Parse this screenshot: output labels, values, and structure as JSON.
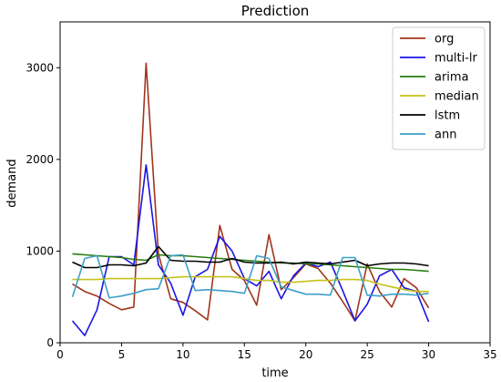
{
  "chart_data": {
    "type": "line",
    "title": "Prediction",
    "xlabel": "time",
    "ylabel": "demand",
    "xlim": [
      0,
      35
    ],
    "ylim": [
      0,
      3500
    ],
    "xticks": [
      0,
      5,
      10,
      15,
      20,
      25,
      30,
      35
    ],
    "yticks": [
      0,
      1000,
      2000,
      3000
    ],
    "grid": false,
    "legend_position": "top-right",
    "x": [
      1,
      2,
      3,
      4,
      5,
      6,
      7,
      8,
      9,
      10,
      11,
      12,
      13,
      14,
      15,
      16,
      17,
      18,
      19,
      20,
      21,
      22,
      23,
      24,
      25,
      26,
      27,
      28,
      29,
      30
    ],
    "series": [
      {
        "name": "org",
        "color": "#a0351c",
        "values": [
          640,
          560,
          510,
          430,
          360,
          390,
          3050,
          970,
          480,
          440,
          350,
          250,
          1280,
          800,
          680,
          410,
          1180,
          580,
          710,
          860,
          810,
          650,
          450,
          240,
          860,
          560,
          390,
          700,
          600,
          380
        ]
      },
      {
        "name": "multi-lr",
        "color": "#1a14e6",
        "values": [
          240,
          80,
          360,
          940,
          940,
          850,
          1940,
          850,
          650,
          300,
          720,
          800,
          1160,
          1000,
          700,
          620,
          780,
          480,
          730,
          870,
          830,
          880,
          570,
          240,
          420,
          730,
          800,
          600,
          560,
          230
        ]
      },
      {
        "name": "arima",
        "color": "#267d0d",
        "values": [
          970,
          960,
          950,
          940,
          930,
          910,
          900,
          960,
          950,
          950,
          940,
          930,
          920,
          910,
          900,
          890,
          880,
          870,
          870,
          860,
          860,
          850,
          840,
          830,
          820,
          810,
          800,
          800,
          790,
          780
        ]
      },
      {
        "name": "median",
        "color": "#c4c21b",
        "values": [
          690,
          690,
          690,
          700,
          700,
          700,
          700,
          700,
          710,
          720,
          720,
          720,
          720,
          720,
          700,
          680,
          680,
          660,
          660,
          670,
          680,
          680,
          690,
          690,
          680,
          640,
          610,
          580,
          560,
          560
        ]
      },
      {
        "name": "lstm",
        "color": "#000000",
        "values": [
          880,
          820,
          820,
          850,
          850,
          840,
          870,
          1050,
          900,
          890,
          890,
          880,
          880,
          920,
          880,
          870,
          870,
          880,
          860,
          880,
          870,
          860,
          880,
          900,
          840,
          860,
          870,
          870,
          860,
          840
        ]
      },
      {
        "name": "ann",
        "color": "#3d9fc8",
        "values": [
          500,
          920,
          950,
          490,
          510,
          540,
          580,
          590,
          950,
          960,
          570,
          580,
          570,
          560,
          540,
          950,
          920,
          610,
          570,
          530,
          530,
          520,
          930,
          930,
          520,
          510,
          530,
          530,
          520,
          540
        ]
      }
    ]
  }
}
